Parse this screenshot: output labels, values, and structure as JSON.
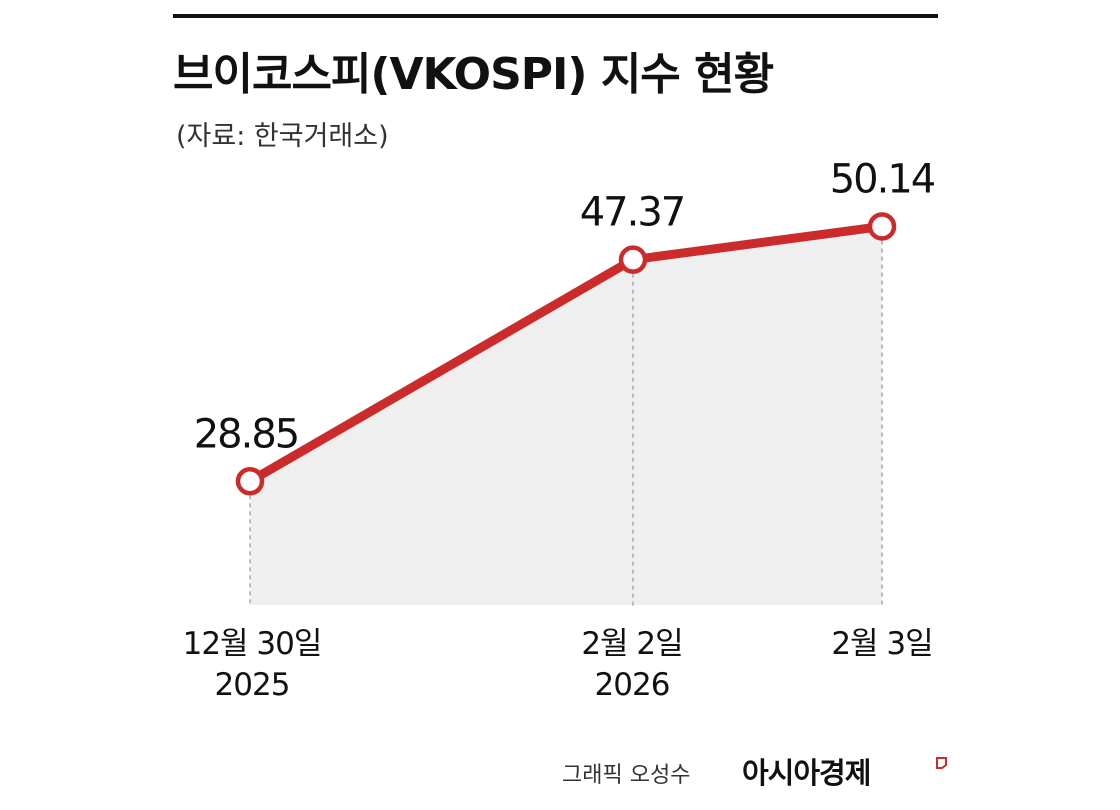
{
  "header": {
    "title": "브이코스피(VKOSPI) 지수 현황",
    "source": "(자료: 한국거래소)"
  },
  "footer": {
    "credit": "그래픽 오성수",
    "brand": "아시아경제"
  },
  "colors": {
    "line": "#cc2b2b",
    "area": "#efefef",
    "text": "#111111",
    "guide": "#aaaaaa"
  },
  "chart_data": {
    "type": "line",
    "x": [
      "12월 30일\n2025",
      "2월 2일\n2026",
      "2월 3일"
    ],
    "values": [
      28.85,
      47.37,
      50.14
    ],
    "data_labels": [
      "28.85",
      "47.37",
      "50.14"
    ],
    "grid": false,
    "legend": "none"
  }
}
